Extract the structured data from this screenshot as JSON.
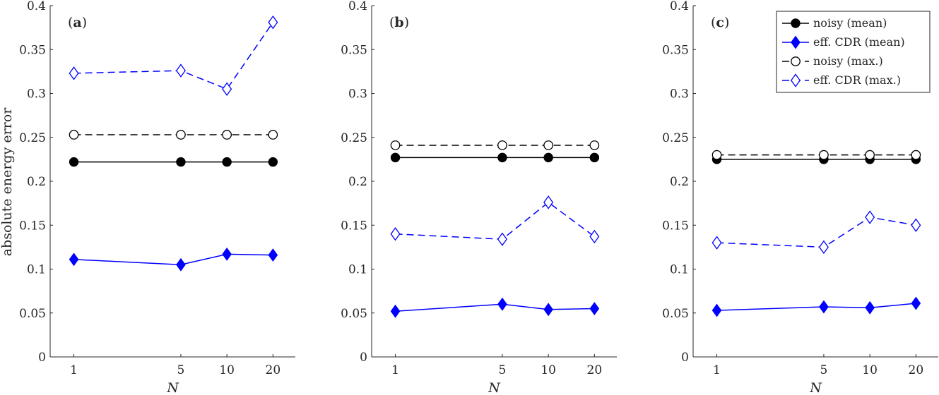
{
  "figure": {
    "ylabel": "absolute energy error",
    "xlabel": "N",
    "legend": {
      "placement": "top-right of panel (c)",
      "entries": [
        "noisy (mean)",
        "eff.  CDR (mean)",
        "noisy (max.)",
        "eff.  CDR (max.)"
      ]
    },
    "colors": {
      "noisy": "#000000",
      "cdr": "#0000ff",
      "axis": "#262626"
    }
  },
  "chart_data": [
    {
      "type": "line",
      "panel_label": "(a)",
      "x": [
        1,
        5,
        10,
        20
      ],
      "x_scale": "log",
      "x_ticks": [
        "1",
        "5",
        "10",
        "20"
      ],
      "y_ticks": [
        "0",
        "0.05",
        "0.1",
        "0.15",
        "0.2",
        "0.25",
        "0.3",
        "0.35",
        "0.4"
      ],
      "ylim": [
        0,
        0.4
      ],
      "xlabel": "N",
      "ylabel": "absolute energy error",
      "series": [
        {
          "name": "noisy (mean)",
          "color": "#000000",
          "marker": "circle-filled",
          "linestyle": "solid",
          "values": [
            0.222,
            0.222,
            0.222,
            0.222
          ]
        },
        {
          "name": "eff.  CDR (mean)",
          "color": "#0000ff",
          "marker": "diamond-filled",
          "linestyle": "solid",
          "values": [
            0.111,
            0.105,
            0.117,
            0.116
          ]
        },
        {
          "name": "noisy (max.)",
          "color": "#000000",
          "marker": "circle-open",
          "linestyle": "dashed",
          "values": [
            0.253,
            0.253,
            0.253,
            0.253
          ]
        },
        {
          "name": "eff.  CDR (max.)",
          "color": "#0000ff",
          "marker": "diamond-open",
          "linestyle": "dashed",
          "values": [
            0.323,
            0.326,
            0.305,
            0.381
          ]
        }
      ]
    },
    {
      "type": "line",
      "panel_label": "(b)",
      "x": [
        1,
        5,
        10,
        20
      ],
      "x_scale": "log",
      "x_ticks": [
        "1",
        "5",
        "10",
        "20"
      ],
      "y_ticks": [
        "0",
        "0.05",
        "0.1",
        "0.15",
        "0.2",
        "0.25",
        "0.3",
        "0.35",
        "0.4"
      ],
      "ylim": [
        0,
        0.4
      ],
      "xlabel": "N",
      "ylabel": "",
      "series": [
        {
          "name": "noisy (mean)",
          "color": "#000000",
          "marker": "circle-filled",
          "linestyle": "solid",
          "values": [
            0.227,
            0.227,
            0.227,
            0.227
          ]
        },
        {
          "name": "eff.  CDR (mean)",
          "color": "#0000ff",
          "marker": "diamond-filled",
          "linestyle": "solid",
          "values": [
            0.052,
            0.06,
            0.054,
            0.055
          ]
        },
        {
          "name": "noisy (max.)",
          "color": "#000000",
          "marker": "circle-open",
          "linestyle": "dashed",
          "values": [
            0.241,
            0.241,
            0.241,
            0.241
          ]
        },
        {
          "name": "eff.  CDR (max.)",
          "color": "#0000ff",
          "marker": "diamond-open",
          "linestyle": "dashed",
          "values": [
            0.14,
            0.134,
            0.176,
            0.137
          ]
        }
      ]
    },
    {
      "type": "line",
      "panel_label": "(c)",
      "x": [
        1,
        5,
        10,
        20
      ],
      "x_scale": "log",
      "x_ticks": [
        "1",
        "5",
        "10",
        "20"
      ],
      "y_ticks": [
        "0",
        "0.05",
        "0.1",
        "0.15",
        "0.2",
        "0.25",
        "0.3",
        "0.35",
        "0.4"
      ],
      "ylim": [
        0,
        0.4
      ],
      "xlabel": "N",
      "ylabel": "",
      "series": [
        {
          "name": "noisy (mean)",
          "color": "#000000",
          "marker": "circle-filled",
          "linestyle": "solid",
          "values": [
            0.225,
            0.225,
            0.225,
            0.225
          ]
        },
        {
          "name": "eff.  CDR (mean)",
          "color": "#0000ff",
          "marker": "diamond-filled",
          "linestyle": "solid",
          "values": [
            0.053,
            0.057,
            0.056,
            0.061
          ]
        },
        {
          "name": "noisy (max.)",
          "color": "#000000",
          "marker": "circle-open",
          "linestyle": "dashed",
          "values": [
            0.23,
            0.23,
            0.23,
            0.23
          ]
        },
        {
          "name": "eff.  CDR (max.)",
          "color": "#0000ff",
          "marker": "diamond-open",
          "linestyle": "dashed",
          "values": [
            0.13,
            0.125,
            0.159,
            0.15
          ]
        }
      ]
    }
  ]
}
